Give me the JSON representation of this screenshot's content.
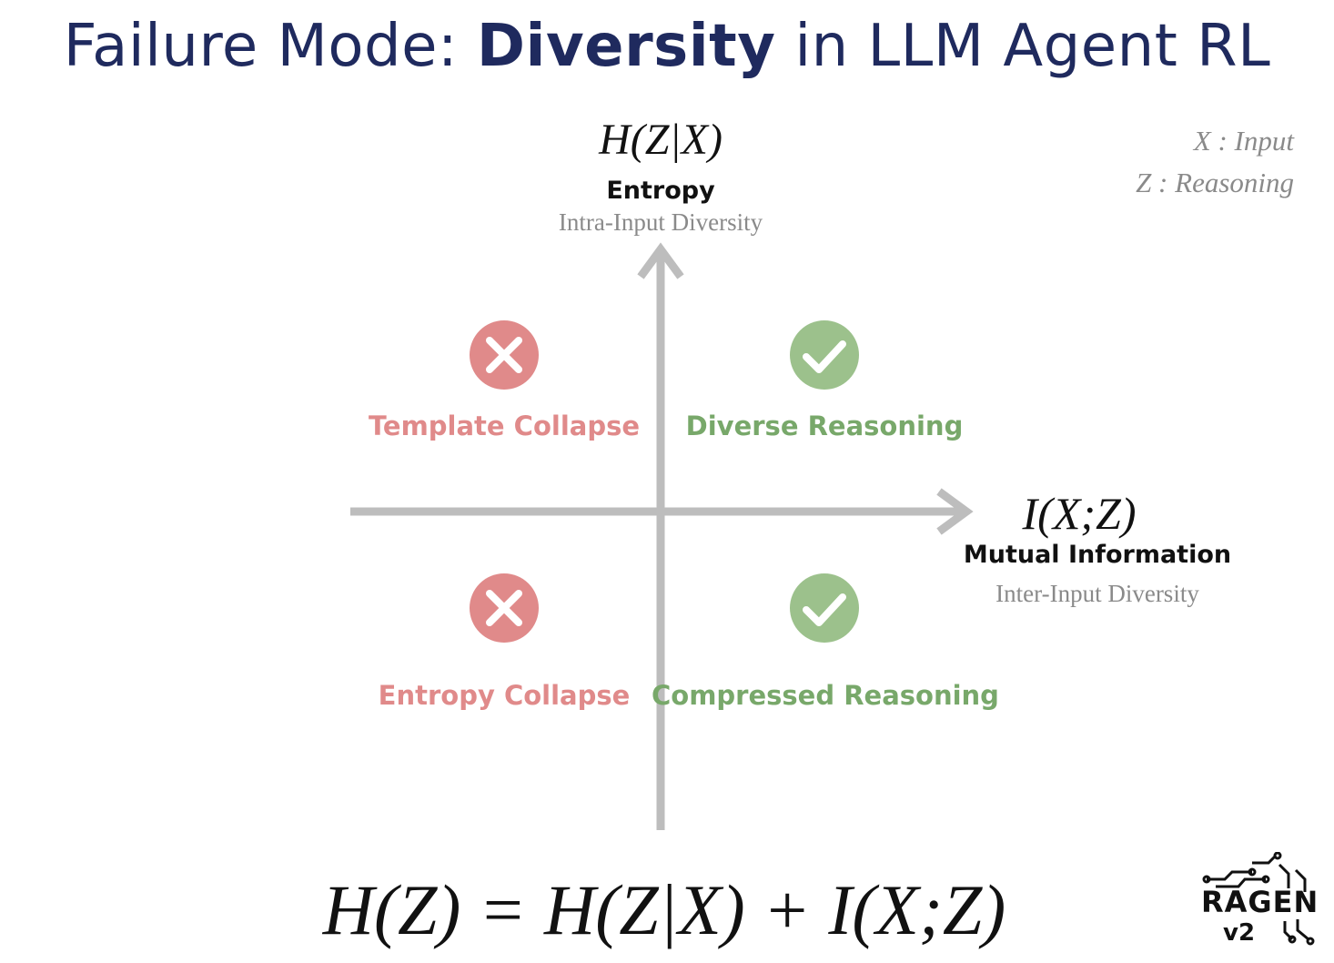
{
  "title": {
    "prefix": "Failure Mode: ",
    "emphasis": "Diversity",
    "suffix": " in LLM Agent RL"
  },
  "legend": {
    "x_def": "X : Input",
    "z_def": "Z : Reasoning"
  },
  "y_axis": {
    "math": "H(Z|X)",
    "name": "Entropy",
    "subtitle": "Intra-Input Diversity"
  },
  "x_axis": {
    "math": "I(X;Z)",
    "name": "Mutual Information",
    "subtitle": "Inter-Input Diversity"
  },
  "quadrants": {
    "top_left": {
      "label": "Template Collapse",
      "status": "fail",
      "icon": "x-circle-icon"
    },
    "top_right": {
      "label": "Diverse Reasoning",
      "status": "ok",
      "icon": "check-circle-icon"
    },
    "bottom_left": {
      "label": "Entropy Collapse",
      "status": "fail",
      "icon": "x-circle-icon"
    },
    "bottom_right": {
      "label": "Compressed Reasoning",
      "status": "ok",
      "icon": "check-circle-icon"
    }
  },
  "equation": "H(Z) = H(Z|X) + I(X;Z)",
  "logo": {
    "name": "RAGEN",
    "version": "v2"
  },
  "colors": {
    "title": "#1f2a5e",
    "axis": "#bdbdbd",
    "fail": "#e08a8a",
    "ok": "#9cc18c",
    "ok_text": "#78a86a",
    "muted": "#8a8a8a"
  }
}
